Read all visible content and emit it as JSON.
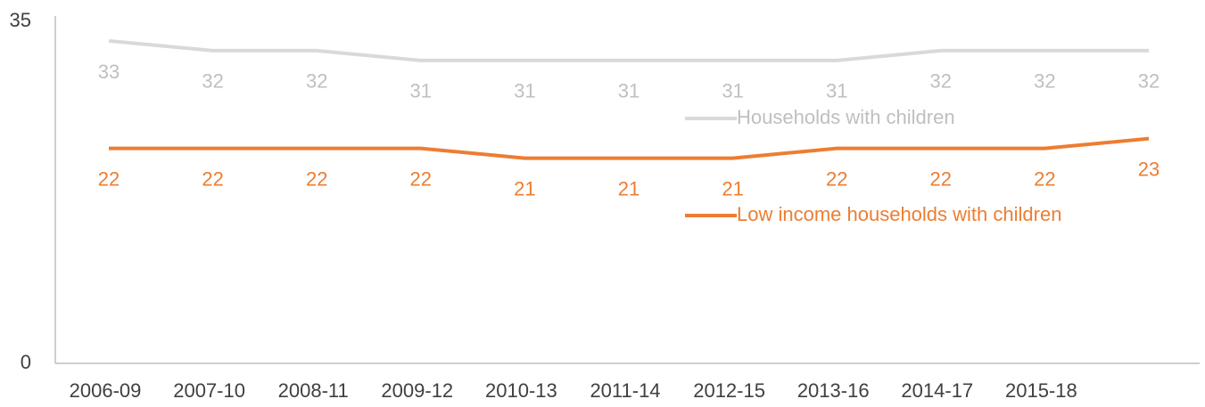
{
  "chart_data": {
    "type": "line",
    "categories": [
      "2006-09",
      "2007-10",
      "2008-11",
      "2009-12",
      "2010-13",
      "2011-14",
      "2012-15",
      "2013-16",
      "2014-17",
      "2015-18",
      null
    ],
    "series": [
      {
        "name": "Households with children",
        "color": "#d9d9d9",
        "values": [
          33,
          32,
          32,
          31,
          31,
          31,
          31,
          31,
          32,
          32,
          32
        ]
      },
      {
        "name": "Low income households with children",
        "color": "#ed7d31",
        "values": [
          22,
          22,
          22,
          22,
          21,
          21,
          21,
          22,
          22,
          22,
          23
        ]
      }
    ],
    "ylim": [
      0,
      35
    ],
    "yticks": [
      0,
      35
    ],
    "grid": false
  }
}
